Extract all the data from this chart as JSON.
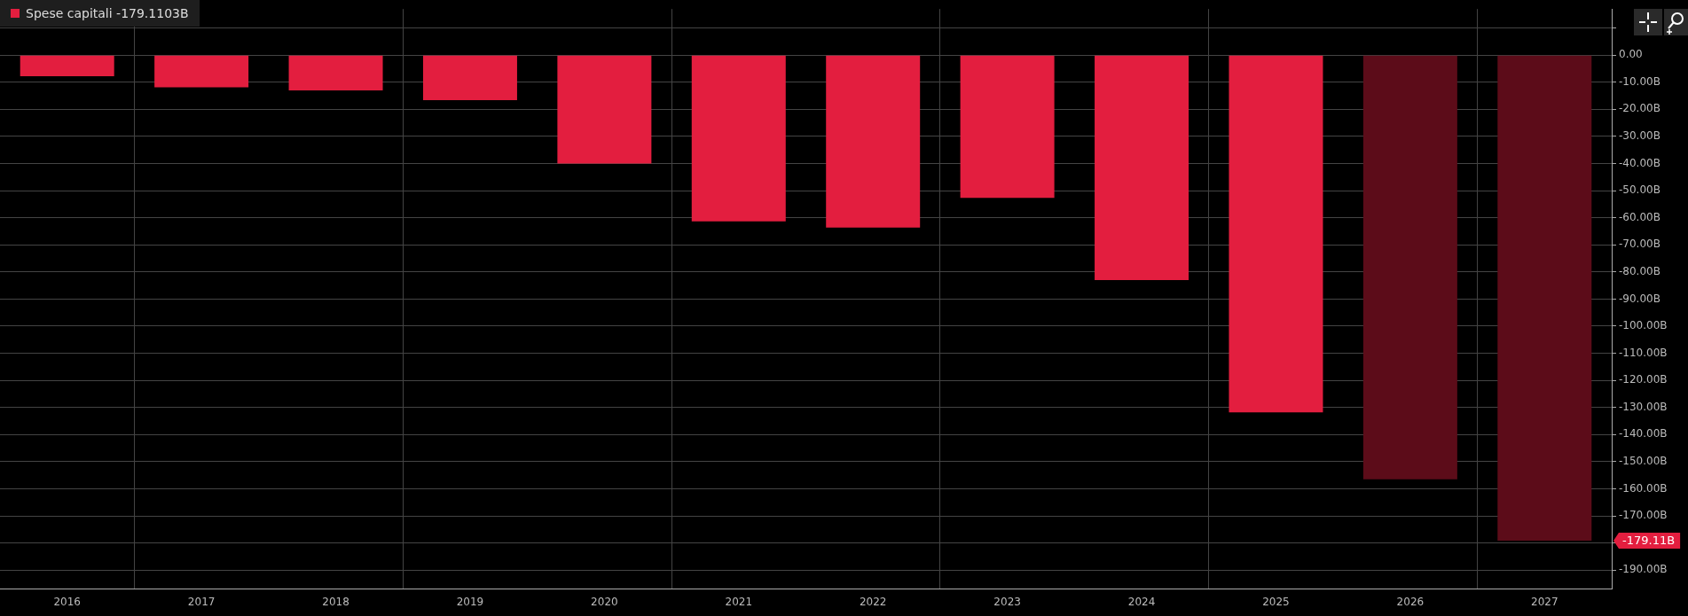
{
  "chart_data": {
    "type": "bar",
    "categories": [
      "2016",
      "2017",
      "2018",
      "2019",
      "2020",
      "2021",
      "2022",
      "2023",
      "2024",
      "2025",
      "2026",
      "2027"
    ],
    "series": [
      {
        "name": "Spese capitali  -179.1103B",
        "color": "#e31e3f",
        "colors": [
          "#e31e3f",
          "#e31e3f",
          "#e31e3f",
          "#e31e3f",
          "#e31e3f",
          "#e31e3f",
          "#e31e3f",
          "#e31e3f",
          "#e31e3f",
          "#e31e3f",
          "#5c0c19",
          "#5c0c19"
        ],
        "values": [
          -7.8,
          -11.9,
          -13.0,
          -16.6,
          -40.0,
          -61.3,
          -63.6,
          -52.7,
          -83.0,
          -131.8,
          -156.5,
          -179.11
        ]
      }
    ],
    "ylim": [
      -197,
      17
    ],
    "yticks": [
      {
        "value": 10,
        "label": null
      },
      {
        "value": 0,
        "label": "0.00"
      },
      {
        "value": -10,
        "label": "-10.00B"
      },
      {
        "value": -20,
        "label": "-20.00B"
      },
      {
        "value": -30,
        "label": "-30.00B"
      },
      {
        "value": -40,
        "label": "-40.00B"
      },
      {
        "value": -50,
        "label": "-50.00B"
      },
      {
        "value": -60,
        "label": "-60.00B"
      },
      {
        "value": -70,
        "label": "-70.00B"
      },
      {
        "value": -80,
        "label": "-80.00B"
      },
      {
        "value": -90,
        "label": "-90.00B"
      },
      {
        "value": -100,
        "label": "-100.00B"
      },
      {
        "value": -110,
        "label": "-110.00B"
      },
      {
        "value": -120,
        "label": "-120.00B"
      },
      {
        "value": -130,
        "label": "-130.00B"
      },
      {
        "value": -140,
        "label": "-140.00B"
      },
      {
        "value": -150,
        "label": "-150.00B"
      },
      {
        "value": -160,
        "label": "-160.00B"
      },
      {
        "value": -170,
        "label": "-170.00B"
      },
      {
        "value": -180,
        "label": null
      },
      {
        "value": -190,
        "label": "-190.00B"
      }
    ],
    "annotations": [
      "-179.11B"
    ],
    "grid": true,
    "legend": "top left"
  }
}
